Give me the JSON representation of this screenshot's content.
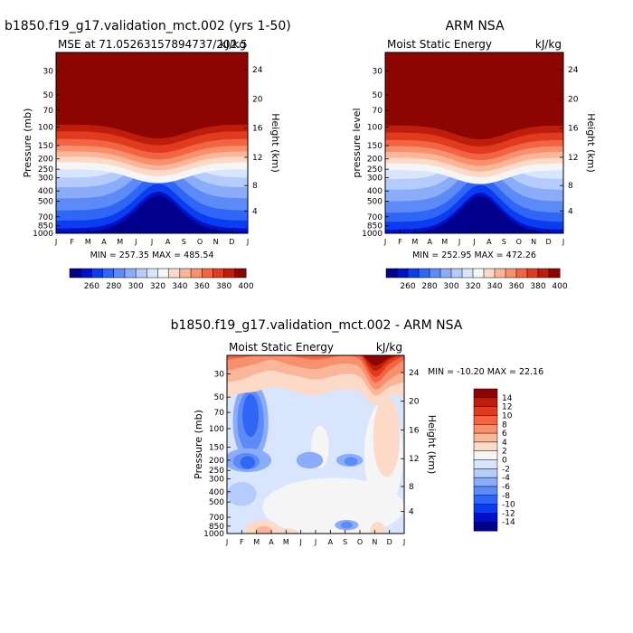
{
  "figure": {
    "bottom_title": "b1850.f19_g17.validation_mct.002 - ARM NSA"
  },
  "panels": [
    {
      "title": "b1850.f19_g17.validation_mct.002 (yrs 1-50)",
      "left_label": "MSE at 71.05263157894737/202.5",
      "right_label": "kJ/kg",
      "ylabel_left": "Pressure (mb)",
      "ylabel_right": "Height (km)",
      "minmax": "MIN = 257.35 MAX = 485.54"
    },
    {
      "title": "ARM NSA",
      "left_label": "Moist Static Energy",
      "right_label": "kJ/kg",
      "ylabel_left": "pressure level",
      "ylabel_right": "Height (km)",
      "minmax": "MIN = 252.95 MAX = 472.26"
    },
    {
      "title": "",
      "left_label": "Moist Static Energy",
      "right_label": "kJ/kg",
      "ylabel_left": "Pressure (mb)",
      "ylabel_right": "Height (km)",
      "minmax": "MIN = -10.20 MAX =  22.16"
    }
  ],
  "chart_data": [
    {
      "type": "heatmap",
      "title": "b1850.f19_g17.validation_mct.002 (yrs 1-50)",
      "subtitle": "MSE at 71.05263157894737/202.5",
      "units": "kJ/kg",
      "xlabel": "",
      "ylabel": "Pressure (mb)",
      "ylabel_right": "Height (km)",
      "x_ticks": [
        "J",
        "F",
        "M",
        "A",
        "M",
        "J",
        "J",
        "A",
        "S",
        "O",
        "N",
        "D",
        "J"
      ],
      "y_ticks": [
        30,
        50,
        70,
        100,
        150,
        200,
        250,
        300,
        400,
        500,
        700,
        850,
        1000
      ],
      "y_log": true,
      "ylim": [
        1000,
        20
      ],
      "right_ticks": [
        4,
        8,
        12,
        16,
        20,
        24
      ],
      "colorbar_labels": [
        260,
        280,
        300,
        320,
        340,
        360,
        380,
        400
      ],
      "colorbar_colors": [
        "#00008c",
        "#0010c8",
        "#0a3cf0",
        "#2f66f5",
        "#5c8af7",
        "#8aacf9",
        "#b4cbfb",
        "#d9e5fc",
        "#f5f5f5",
        "#fdd9c8",
        "#fbb69a",
        "#f8906e",
        "#f26444",
        "#e03a1f",
        "#bd1d0a",
        "#8c0500"
      ],
      "contour_levels": [
        250,
        260,
        270,
        280,
        290,
        300,
        310,
        320,
        330,
        340,
        350,
        360,
        370,
        380,
        390,
        400,
        410
      ],
      "min": 257.35,
      "max": 485.54
    },
    {
      "type": "heatmap",
      "title": "ARM NSA",
      "subtitle": "Moist Static Energy",
      "units": "kJ/kg",
      "xlabel": "",
      "ylabel": "pressure level",
      "ylabel_right": "Height (km)",
      "x_ticks": [
        "J",
        "F",
        "M",
        "A",
        "M",
        "J",
        "J",
        "A",
        "S",
        "O",
        "N",
        "D",
        "J"
      ],
      "y_ticks": [
        30,
        50,
        70,
        100,
        150,
        200,
        250,
        300,
        400,
        500,
        700,
        850,
        1000
      ],
      "y_log": true,
      "ylim": [
        1000,
        20
      ],
      "right_ticks": [
        4,
        8,
        12,
        16,
        20,
        24
      ],
      "colorbar_labels": [
        260,
        280,
        300,
        320,
        340,
        360,
        380,
        400
      ],
      "colorbar_colors": [
        "#00008c",
        "#0010c8",
        "#0a3cf0",
        "#2f66f5",
        "#5c8af7",
        "#8aacf9",
        "#b4cbfb",
        "#d9e5fc",
        "#f5f5f5",
        "#fdd9c8",
        "#fbb69a",
        "#f8906e",
        "#f26444",
        "#e03a1f",
        "#bd1d0a",
        "#8c0500"
      ],
      "contour_levels": [
        250,
        260,
        270,
        280,
        290,
        300,
        310,
        320,
        330,
        340,
        350,
        360,
        370,
        380,
        390,
        400,
        410
      ],
      "min": 252.95,
      "max": 472.26
    },
    {
      "type": "heatmap",
      "title": "b1850.f19_g17.validation_mct.002 - ARM NSA",
      "subtitle": "Moist Static Energy",
      "units": "kJ/kg",
      "xlabel": "",
      "ylabel": "Pressure (mb)",
      "ylabel_right": "Height (km)",
      "x_ticks": [
        "J",
        "F",
        "M",
        "A",
        "M",
        "J",
        "J",
        "A",
        "S",
        "O",
        "N",
        "D",
        "J"
      ],
      "y_ticks": [
        30,
        50,
        70,
        100,
        150,
        200,
        250,
        300,
        400,
        500,
        700,
        850,
        1000
      ],
      "y_log": true,
      "ylim": [
        1000,
        20
      ],
      "right_ticks": [
        4,
        8,
        12,
        16,
        20,
        24
      ],
      "colorbar_labels": [
        14,
        12,
        10,
        8,
        6,
        4,
        2,
        0,
        -2,
        -4,
        -6,
        -8,
        -10,
        -12,
        -14
      ],
      "colorbar_colors": [
        "#8c0500",
        "#bd1d0a",
        "#e03a1f",
        "#f26444",
        "#f8906e",
        "#fbb69a",
        "#fdd9c8",
        "#f5f5f5",
        "#d9e5fc",
        "#b4cbfb",
        "#8aacf9",
        "#5c8af7",
        "#2f66f5",
        "#0a3cf0",
        "#0010c8",
        "#00008c"
      ],
      "contour_levels": [
        -16,
        -14,
        -12,
        -10,
        -8,
        -6,
        -4,
        -2,
        0,
        2,
        4,
        6,
        8,
        10,
        12,
        14,
        16
      ],
      "min": -10.2,
      "max": 22.16
    }
  ]
}
